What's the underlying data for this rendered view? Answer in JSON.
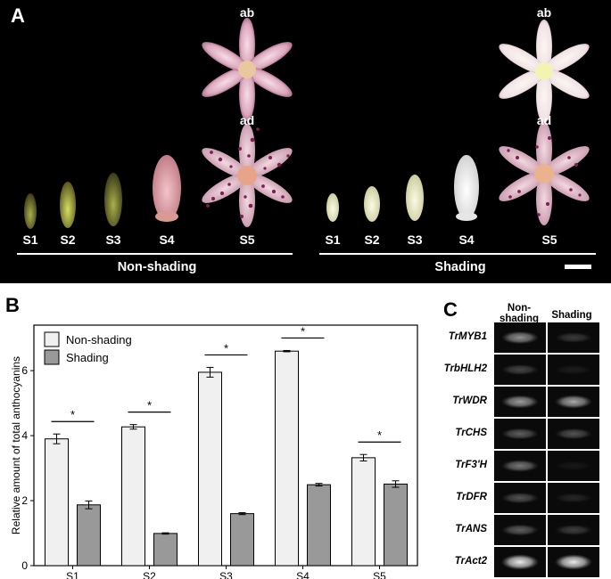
{
  "panelA": {
    "letter": "A",
    "face_top": "ab",
    "face_bottom": "ad",
    "stages": [
      "S1",
      "S2",
      "S3",
      "S4",
      "S5"
    ],
    "groups": [
      "Non-shading",
      "Shading"
    ]
  },
  "panelB": {
    "letter": "B",
    "sig_marker": "*"
  },
  "panelC": {
    "letter": "C",
    "col_head_1_line1": "Non-",
    "col_head_1_line2": "shading",
    "col_head_2": "Shading",
    "genes": [
      "TrMYB1",
      "TrbHLH2",
      "TrWDR",
      "TrCHS",
      "TrF3'H",
      "TrDFR",
      "TrANS",
      "TrAct2"
    ]
  },
  "chart_data": {
    "type": "bar",
    "categories": [
      "S1",
      "S2",
      "S3",
      "S4",
      "S5"
    ],
    "series": [
      {
        "name": "Non-shading",
        "values": [
          3.9,
          4.27,
          5.95,
          6.6,
          3.32
        ],
        "errors": [
          0.15,
          0.07,
          0.15,
          0.02,
          0.1
        ],
        "color": "#f0f0f0"
      },
      {
        "name": "Shading",
        "values": [
          1.87,
          0.99,
          1.6,
          2.49,
          2.51
        ],
        "errors": [
          0.12,
          0.02,
          0.03,
          0.04,
          0.1
        ],
        "color": "#999999"
      }
    ],
    "significant": [
      true,
      true,
      true,
      true,
      true
    ],
    "ylabel": "Relative amount of total anthocyanins",
    "xlabel": "",
    "ylim": [
      0,
      7.4
    ],
    "yticks": [
      0,
      2,
      4,
      6
    ],
    "legend": "top-left",
    "grid": false
  },
  "gel_intensity": {
    "TrMYB1": [
      0.55,
      0.2
    ],
    "TrbHLH2": [
      0.25,
      0.08
    ],
    "TrWDR": [
      0.6,
      0.65
    ],
    "TrCHS": [
      0.35,
      0.3
    ],
    "TrF3'H": [
      0.45,
      0.06
    ],
    "TrDFR": [
      0.3,
      0.12
    ],
    "TrANS": [
      0.35,
      0.22
    ],
    "TrAct2": [
      0.92,
      0.92
    ]
  }
}
